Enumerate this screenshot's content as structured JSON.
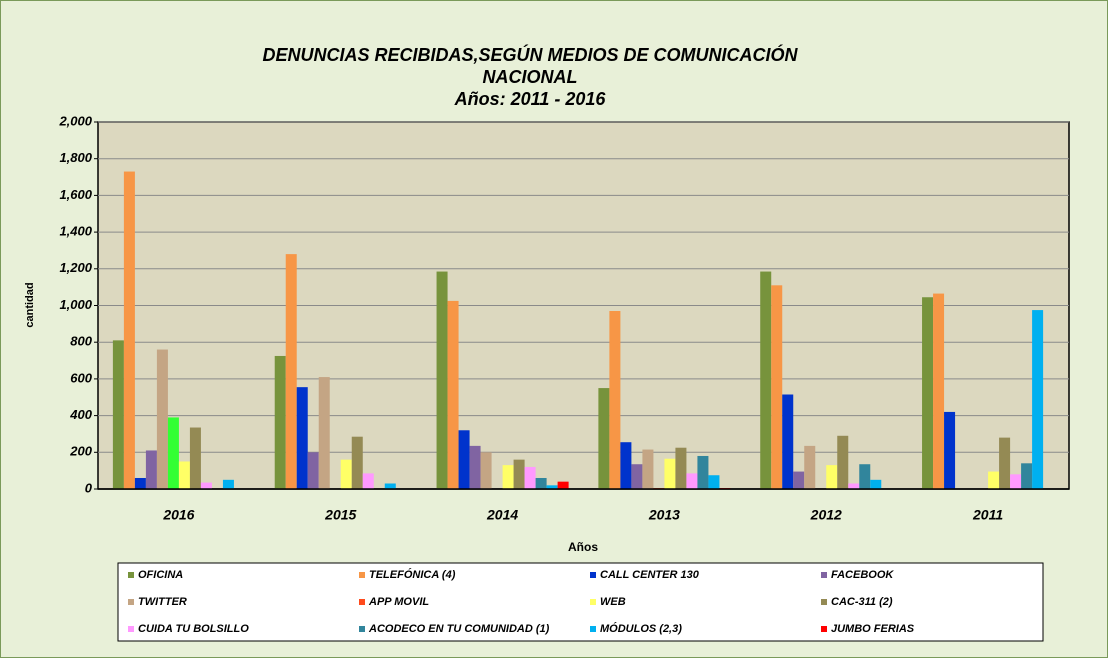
{
  "chart_data": {
    "type": "bar",
    "title": [
      "DENUNCIAS RECIBIDAS,SEGÚN MEDIOS DE COMUNICACIÓN",
      "NACIONAL",
      "Años: 2011 - 2016"
    ],
    "x_label": "Años",
    "y_label": "cantidad",
    "categories": [
      "2016",
      "2015",
      "2014",
      "2013",
      "2012",
      "2011"
    ],
    "series": [
      {
        "name": "OFICINA",
        "color": "#77933c",
        "values": [
          810,
          725,
          1185,
          550,
          1185,
          1045
        ]
      },
      {
        "name": "TELEFÓNICA (4)",
        "color": "#f79646",
        "values": [
          1730,
          1280,
          1025,
          970,
          1110,
          1065
        ]
      },
      {
        "name": "CALL CENTER 130",
        "color": "#0033cc",
        "values": [
          60,
          555,
          320,
          255,
          515,
          420
        ]
      },
      {
        "name": "FACEBOOK",
        "color": "#8064a2",
        "values": [
          210,
          200,
          235,
          135,
          95,
          0
        ]
      },
      {
        "name": "TWITTER",
        "color": "#c4a584",
        "values": [
          760,
          610,
          200,
          215,
          235,
          0
        ]
      },
      {
        "name": "APP MOVIL",
        "color": "#ff4a1c",
        "point_colors": [
          "#33ff33",
          "#ff4a1c",
          "#ff4a1c",
          "#ff4a1c",
          "#ff4a1c",
          "#ff4a1c"
        ],
        "values": [
          390,
          0,
          0,
          5,
          0,
          0
        ]
      },
      {
        "name": "WEB",
        "color": "#ffff66",
        "values": [
          150,
          160,
          130,
          165,
          130,
          95
        ]
      },
      {
        "name": "CAC-311 (2)",
        "color": "#948a54",
        "values": [
          335,
          285,
          160,
          225,
          290,
          280
        ]
      },
      {
        "name": "CUIDA TU BOLSILLO",
        "color": "#ff99ff",
        "values": [
          35,
          85,
          120,
          85,
          30,
          80
        ]
      },
      {
        "name": "ACODECO EN TU COMUNIDAD (1)",
        "color": "#31859c",
        "values": [
          0,
          0,
          60,
          180,
          135,
          140
        ]
      },
      {
        "name": "MÓDULOS (2,3)",
        "color": "#00b0f0",
        "values": [
          50,
          30,
          20,
          75,
          50,
          975
        ]
      },
      {
        "name": "JUMBO FERIAS",
        "color": "#ff0000",
        "values": [
          0,
          0,
          40,
          5,
          0,
          0
        ]
      }
    ],
    "ylim": [
      0,
      2000
    ],
    "yticks": [
      0,
      200,
      400,
      600,
      800,
      {
        "value": 1000,
        "label": "1,000"
      },
      {
        "value": 1200,
        "label": "1,200"
      },
      {
        "value": 1400,
        "label": "1,400"
      },
      {
        "value": 1600,
        "label": "1,600"
      },
      {
        "value": 1800,
        "label": "1,800"
      },
      {
        "value": 2000,
        "label": "2,000"
      }
    ],
    "grid": true,
    "legend": "bottom"
  }
}
